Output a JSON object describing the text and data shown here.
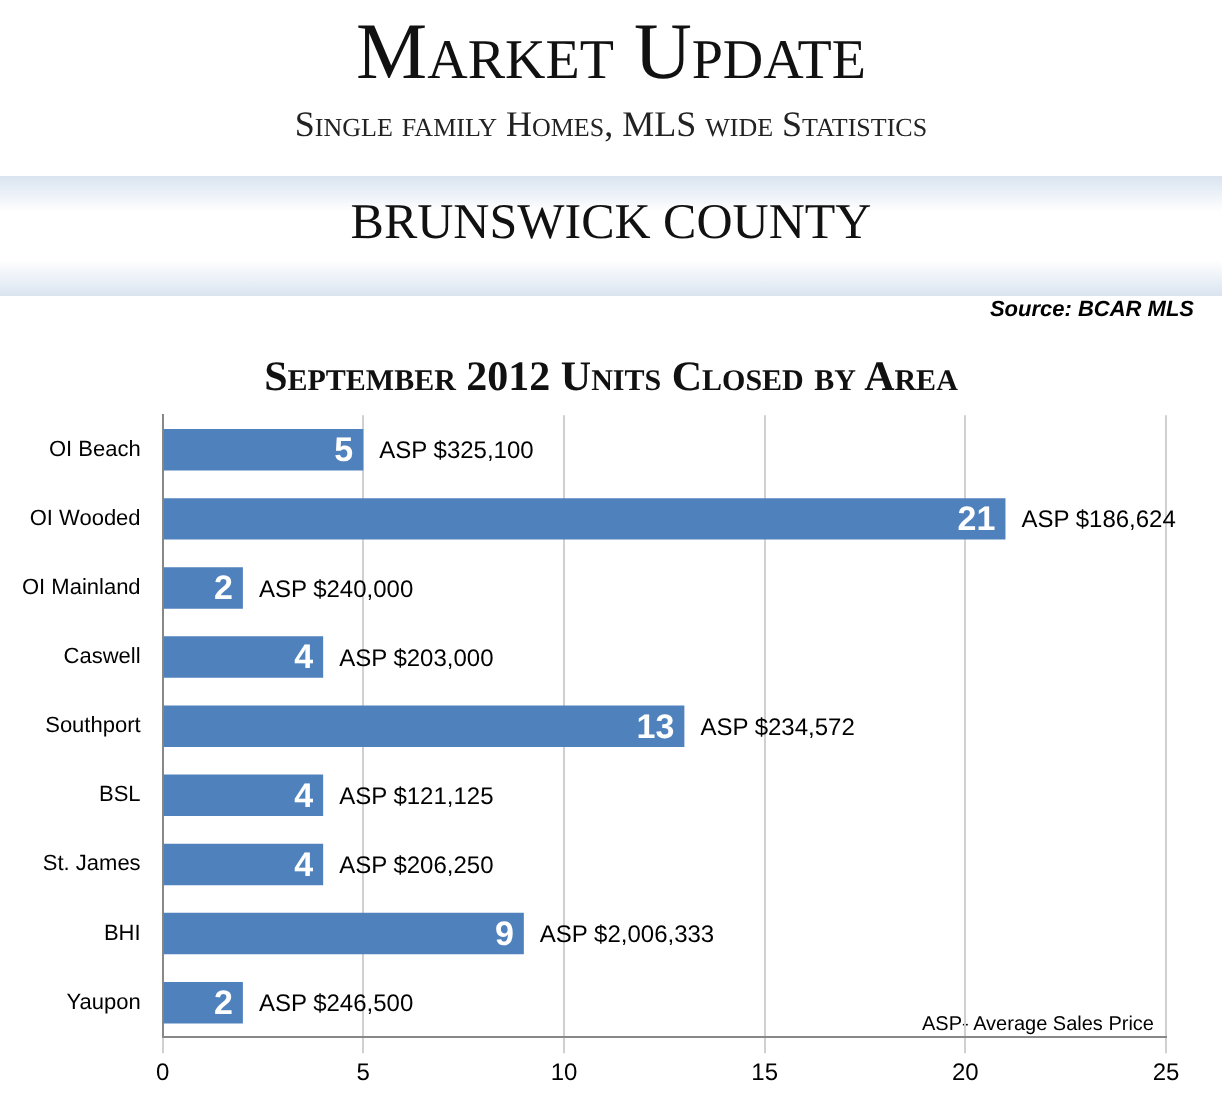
{
  "chart_data": {
    "type": "bar",
    "orientation": "horizontal",
    "title": "September 2012 Units Closed by Area",
    "categories": [
      "OI Beach",
      "OI Wooded",
      "OI Mainland",
      "Caswell",
      "Southport",
      "BSL",
      "St. James",
      "BHI",
      "Yaupon"
    ],
    "values": [
      5,
      21,
      2,
      4,
      13,
      4,
      4,
      9,
      2
    ],
    "color": "#4f81bd",
    "data_labels": true,
    "xlim": [
      0,
      25
    ],
    "xticks": [
      0,
      5,
      10,
      15,
      20,
      25
    ],
    "grid": "x",
    "annotations": [
      "Market Update",
      "Single family Homes, MLS wide Statistics",
      "BRUNSWICK COUNTY",
      "Source: BCAR MLS",
      "ASP- Average Sales Price",
      {
        "text": "ASP $325,100",
        "x": 5,
        "y": "OI Beach"
      },
      {
        "text": "ASP $186,624",
        "x": 21,
        "y": "OI Wooded"
      },
      {
        "text": "ASP $240,000",
        "x": 2,
        "y": "OI Mainland"
      },
      {
        "text": "ASP $203,000",
        "x": 4,
        "y": "Caswell"
      },
      {
        "text": "ASP $234,572",
        "x": 13,
        "y": "Southport"
      },
      {
        "text": "ASP $121,125",
        "x": 4,
        "y": "BSL"
      },
      {
        "text": "ASP $206,250",
        "x": 4,
        "y": "St. James"
      },
      {
        "text": "ASP $2,006,333",
        "x": 9,
        "y": "BHI"
      },
      {
        "text": "ASP $246,500",
        "x": 2,
        "y": "Yaupon"
      }
    ]
  }
}
